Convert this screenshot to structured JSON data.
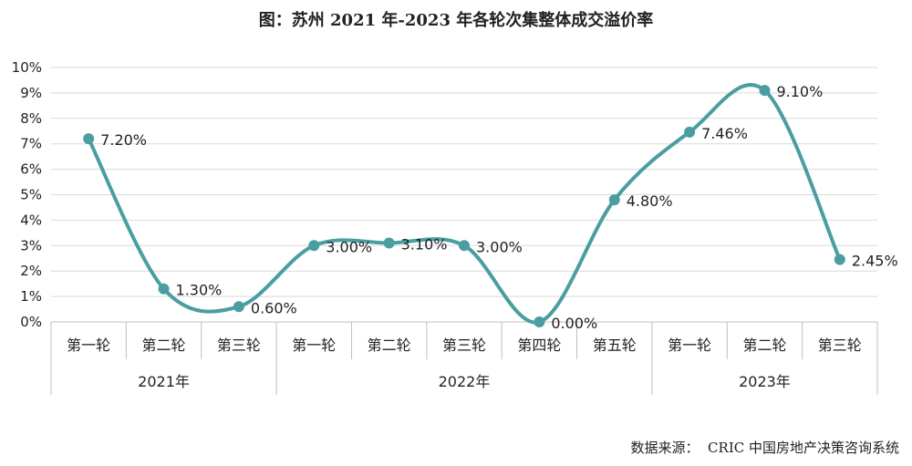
{
  "colors": {
    "line": "#4a9ea1",
    "grid": "#d9d9d9",
    "axis": "#bfbfbf"
  },
  "chart_data": {
    "type": "line",
    "title": "图：苏州 2021 年-2023 年各轮次集整体成交溢价率",
    "categories": [
      "第一轮",
      "第二轮",
      "第三轮",
      "第一轮",
      "第二轮",
      "第三轮",
      "第四轮",
      "第五轮",
      "第一轮",
      "第二轮",
      "第三轮"
    ],
    "groups": [
      {
        "label": "2021年",
        "count": 3
      },
      {
        "label": "2022年",
        "count": 5
      },
      {
        "label": "2023年",
        "count": 3
      }
    ],
    "series": [
      {
        "values": [
          7.2,
          1.3,
          0.6,
          3.0,
          3.1,
          3.0,
          0.0,
          4.8,
          7.46,
          9.1,
          2.45
        ],
        "labels": [
          "7.20%",
          "1.30%",
          "0.60%",
          "3.00%",
          "3.10%",
          "3.00%",
          "0.00%",
          "4.80%",
          "7.46%",
          "9.10%",
          "2.45%"
        ]
      }
    ],
    "yticks": [
      "0%",
      "1%",
      "2%",
      "3%",
      "4%",
      "5%",
      "6%",
      "7%",
      "8%",
      "9%",
      "10%"
    ],
    "ylim": [
      0,
      10
    ],
    "grid": true,
    "smooth": true
  },
  "source": "数据来源：  CRIC 中国房地产决策咨询系统"
}
